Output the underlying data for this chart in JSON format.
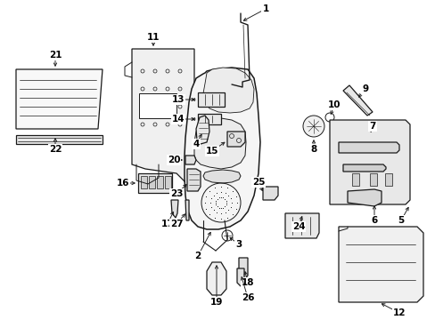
{
  "bg_color": "#ffffff",
  "line_color": "#1a1a1a",
  "label_fontsize": 7.5,
  "arrow_lw": 0.7,
  "parts_lw": 0.9
}
